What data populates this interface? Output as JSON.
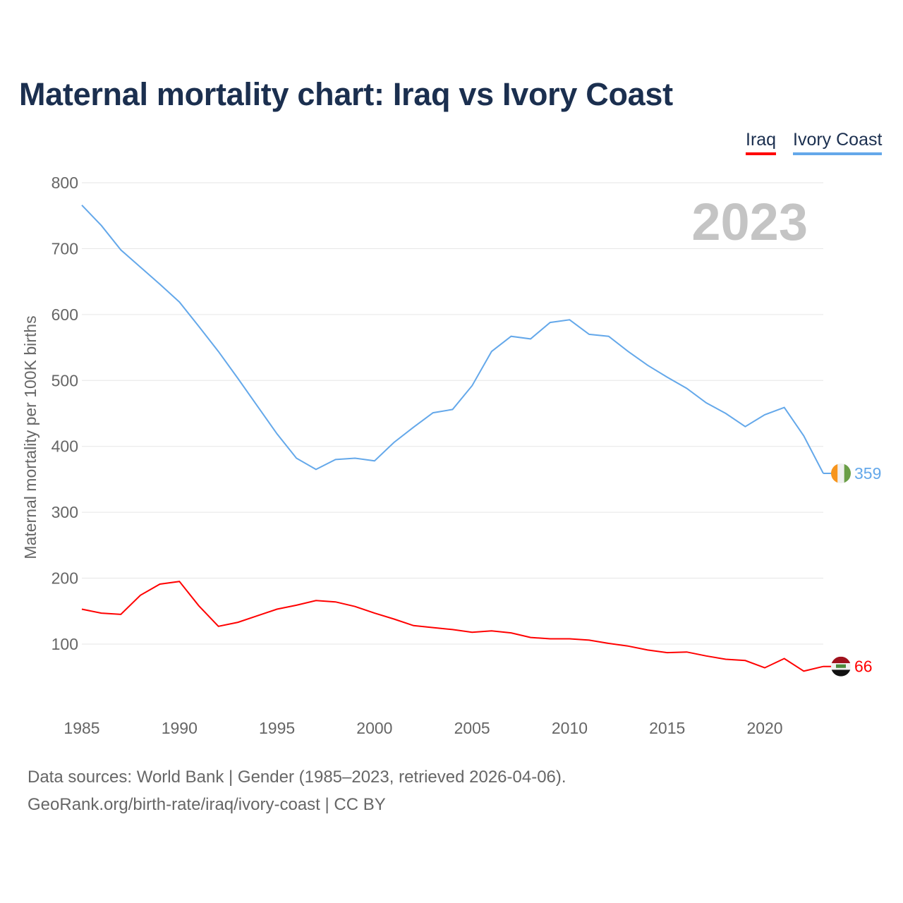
{
  "title": "Maternal mortality chart: Iraq vs Ivory Coast",
  "footer": {
    "line1": "Data sources: World Bank | Gender (1985–2023, retrieved 2026-04-06).",
    "line2": "GeoRank.org/birth-rate/iraq/ivory-coast | CC BY"
  },
  "chart_data": {
    "type": "line",
    "title": "Maternal mortality chart: Iraq vs Ivory Coast",
    "ylabel": "Maternal mortality per 100K births",
    "xlabel": "",
    "year_label": "2023",
    "xlim": [
      1985,
      2023
    ],
    "ylim": [
      0,
      800
    ],
    "xticks": [
      "1985",
      "1990",
      "1995",
      "2000",
      "2005",
      "2010",
      "2015",
      "2020"
    ],
    "yticks": [
      "100",
      "200",
      "300",
      "400",
      "500",
      "600",
      "700",
      "800"
    ],
    "grid": true,
    "legend_position": "top-right",
    "x": [
      1985,
      1986,
      1987,
      1988,
      1989,
      1990,
      1991,
      1992,
      1993,
      1994,
      1995,
      1996,
      1997,
      1998,
      1999,
      2000,
      2001,
      2002,
      2003,
      2004,
      2005,
      2006,
      2007,
      2008,
      2009,
      2010,
      2011,
      2012,
      2013,
      2014,
      2015,
      2016,
      2017,
      2018,
      2019,
      2020,
      2021,
      2022,
      2023
    ],
    "series": [
      {
        "name": "Iraq",
        "color": "#ff0000",
        "end_label": "66",
        "values": [
          153,
          147,
          145,
          174,
          191,
          195,
          158,
          127,
          133,
          143,
          153,
          159,
          166,
          164,
          157,
          147,
          138,
          128,
          125,
          122,
          118,
          120,
          117,
          110,
          108,
          108,
          106,
          101,
          97,
          91,
          87,
          88,
          82,
          77,
          75,
          64,
          78,
          59,
          66
        ]
      },
      {
        "name": "Ivory Coast",
        "color": "#64a8ea",
        "end_label": "359",
        "values": [
          766,
          735,
          698,
          672,
          646,
          619,
          582,
          544,
          503,
          461,
          419,
          382,
          365,
          380,
          382,
          378,
          406,
          429,
          451,
          456,
          492,
          544,
          567,
          563,
          588,
          592,
          570,
          567,
          544,
          523,
          505,
          488,
          466,
          450,
          430,
          448,
          459,
          416,
          359
        ]
      }
    ]
  }
}
